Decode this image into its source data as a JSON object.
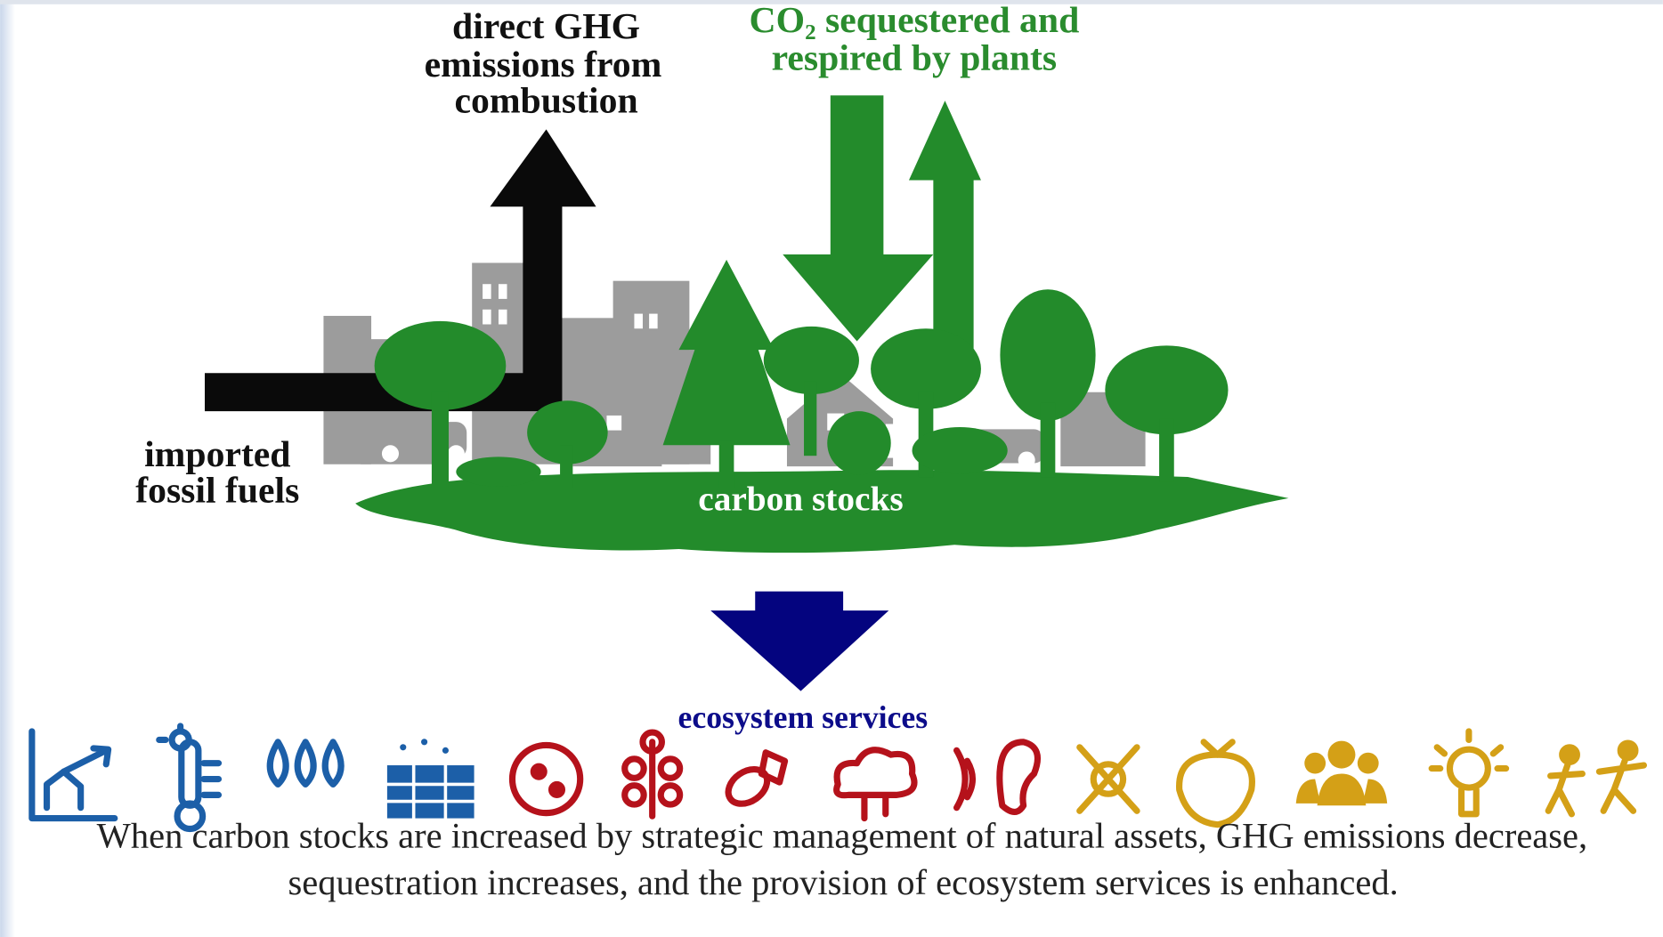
{
  "labels": {
    "emissions": [
      "direct GHG",
      "emissions from",
      "combustion"
    ],
    "sequestration": [
      "CO₂ sequestered and",
      "respired by plants"
    ],
    "fossil": [
      "imported",
      "fossil fuels"
    ],
    "stocks": "carbon stocks",
    "services": "ecosystem services"
  },
  "caption": [
    "When carbon stocks are increased by strategic management of  natural assets, GHG emissions decrease,",
    "sequestration increases, and the provision of ecosystem services is enhanced."
  ]
}
